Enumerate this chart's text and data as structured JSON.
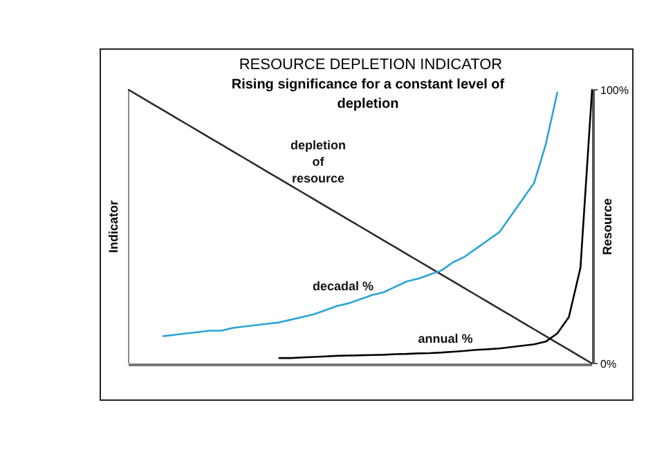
{
  "chart_data": {
    "type": "line",
    "title": "RESOURCE DEPLETION INDICATOR",
    "subtitle": "Rising significance for a constant level of depletion",
    "ylabel": "Indicator",
    "y2label": "Resource",
    "categories": [
      null,
      null,
      null,
      null,
      null,
      null,
      null,
      null,
      null,
      null,
      null,
      null,
      null,
      null,
      null,
      null,
      null,
      null,
      null,
      null,
      null,
      null,
      null,
      null,
      null,
      null,
      null,
      null,
      null,
      null,
      null,
      null,
      null,
      null,
      null,
      null,
      null,
      null,
      null,
      null,
      null
    ],
    "ylim": [
      0,
      100
    ],
    "yticks": [
      {
        "value": 100,
        "label": "100%"
      },
      {
        "value": 0,
        "label": "0%"
      }
    ],
    "grid": false,
    "legend": false,
    "marker": "none",
    "line_style": "solid",
    "series": [
      {
        "name": "depletion of resource",
        "color": "#2a2a2a",
        "values": [
          100,
          97.5,
          95,
          92.5,
          90,
          87.5,
          85,
          82.5,
          80,
          77.5,
          75,
          72.5,
          70,
          67.5,
          65,
          62.5,
          60,
          57.5,
          55,
          52.5,
          50,
          47.5,
          45,
          42.5,
          40,
          37.5,
          35,
          32.5,
          30,
          27.5,
          25,
          22.5,
          20,
          17.5,
          15,
          12.5,
          10,
          7.5,
          5,
          2.5,
          0
        ]
      },
      {
        "name": "decadal %",
        "color": "#29a3d6",
        "values": [
          null,
          null,
          null,
          10,
          10.5,
          11,
          11.5,
          12,
          12,
          13,
          13.5,
          14,
          14.5,
          15,
          16,
          17,
          18,
          19.5,
          21,
          22,
          23.5,
          25,
          26,
          28,
          30,
          31,
          32.5,
          34,
          37,
          39,
          42,
          45,
          48,
          54,
          60,
          66,
          80,
          99,
          null,
          null,
          null
        ]
      },
      {
        "name": "annual %",
        "color": "#000000",
        "values": [
          null,
          null,
          null,
          null,
          null,
          null,
          null,
          null,
          null,
          null,
          null,
          null,
          null,
          2,
          2,
          2.2,
          2.4,
          2.6,
          2.8,
          2.9,
          3,
          3.1,
          3.2,
          3.4,
          3.5,
          3.7,
          3.8,
          4,
          4.3,
          4.6,
          5,
          5.2,
          5.5,
          6,
          6.5,
          7,
          8,
          11,
          17,
          35,
          100
        ]
      }
    ]
  }
}
